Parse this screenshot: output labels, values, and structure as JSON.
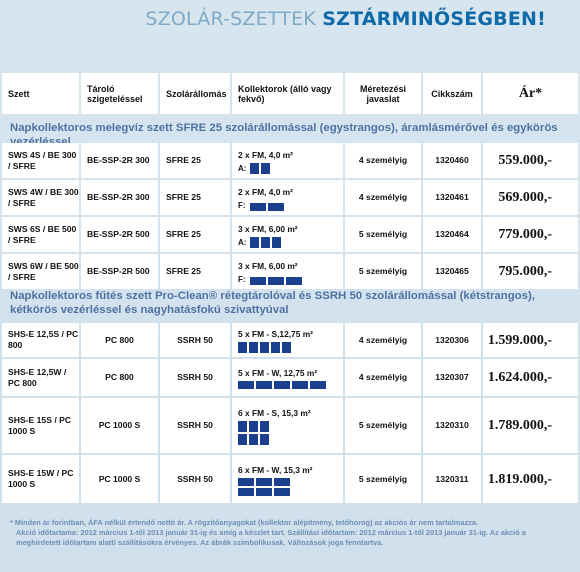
{
  "title": {
    "light": "SZOLÁR-SZETTEK ",
    "bold": "SZTÁRMINŐSÉGBEN!"
  },
  "headers": {
    "set": "Szett",
    "storage": "Tároló szigeteléssel",
    "station": "Szolárállomás",
    "collectors": "Kollektorok (álló vagy fekvő)",
    "sizing": "Méretezési javaslat",
    "code": "Cikkszám",
    "price": "Ár*"
  },
  "section1": "Napkollektoros melegvíz szett SFRE 25 szolárállomással (egystrangos), áramlásmérővel és egykörös vezérléssel",
  "section2": "Napkollektoros fűtés szett Pro-Clean® rétegtárolóval és SSRH 50 szolárállomással (kétstrangos), kétkörös vezérléssel és nagyhatásfokú szivattyúval",
  "rows": [
    {
      "set": "SWS 4S / BE 300 / SFRE",
      "storage": "BE-SSP-2R 300",
      "station": "SFRE 25",
      "collector": "2 x FM, 4,0 m²",
      "panel_label": "A:",
      "sizing": "4 személyig",
      "code": "1320460",
      "price": "559.000,-"
    },
    {
      "set": "SWS 4W / BE 300 / SFRE",
      "storage": "BE-SSP-2R 300",
      "station": "SFRE 25",
      "collector": "2 x FM, 4,0 m²",
      "panel_label": "F:",
      "sizing": "4 személyig",
      "code": "1320461",
      "price": "569.000,-"
    },
    {
      "set": "SWS 6S / BE 500 / SFRE",
      "storage": "BE-SSP-2R 500",
      "station": "SFRE 25",
      "collector": "3 x FM, 6,00 m²",
      "panel_label": "A:",
      "sizing": "5 személyig",
      "code": "1320464",
      "price": "779.000,-"
    },
    {
      "set": "SWS 6W / BE 500 / SFRE",
      "storage": "BE-SSP-2R 500",
      "station": "SFRE 25",
      "collector": "3 x FM, 6,00 m²",
      "panel_label": "F:",
      "sizing": "5 személyig",
      "code": "1320465",
      "price": "795.000,-"
    },
    {
      "set": "SHS-E 12,5S / PC 800",
      "storage": "PC 800",
      "station": "SSRH 50",
      "collector": "5 x FM - S,12,75 m²",
      "sizing": "4 személyig",
      "code": "1320306",
      "price": "1.599.000,-"
    },
    {
      "set": "SHS-E 12,5W / PC 800",
      "storage": "PC 800",
      "station": "SSRH 50",
      "collector": "5 x FM - W, 12,75 m²",
      "sizing": "4 személyig",
      "code": "1320307",
      "price": "1.624.000,-"
    },
    {
      "set": "SHS-E 15S / PC 1000 S",
      "storage": "PC 1000 S",
      "station": "SSRH 50",
      "collector": "6 x FM - S, 15,3 m²",
      "sizing": "5 személyig",
      "code": "1320310",
      "price": "1.789.000,-"
    },
    {
      "set": "SHS-E 15W / PC 1000 S",
      "storage": "PC 1000 S",
      "station": "SSRH 50",
      "collector": "6 x FM - W, 15,3 m²",
      "sizing": "5 személyig",
      "code": "1320311",
      "price": "1.819.000,-"
    }
  ],
  "footer": {
    "line1": "*  Minden ár forintban, ÁFA nélkül értendő nettó ár. A rögzítőanyagokat (kollektor alépítmény, tetőhorog) az akciós ár nem tartalmazza.",
    "line2": "Akció időtartama: 2012 március 1-től 2013 január 31-ig és amíg a készlet tart. Szállítási időtartam: 2012 március 1-től 2013 január 31-ig. Az akció a meghirdetett időtartam alatti szállításokra érvényes. Az ábrák szimbolikusak. Változások joga fenntartva."
  },
  "colors": {
    "panel": "#1a3f8c",
    "title_bold": "#0e6aa8",
    "section_text": "#4a6fa0"
  }
}
